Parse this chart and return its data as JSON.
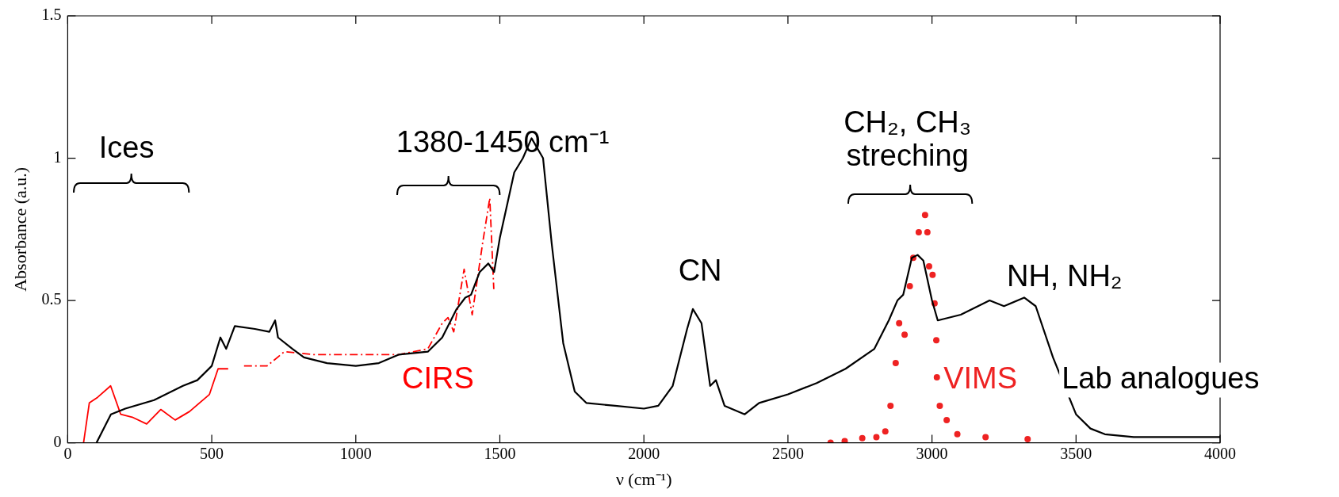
{
  "chart_data": {
    "type": "line",
    "xlabel": "ν (cm⁻¹)",
    "ylabel": "Absorbance (a.u.)",
    "xlim": [
      0,
      4000
    ],
    "xticks": [
      0,
      500,
      1000,
      1500,
      2000,
      2500,
      3000,
      3500,
      4000
    ],
    "ylim": [
      0,
      1.5
    ],
    "yticks": [
      0,
      0.5,
      1,
      1.5
    ],
    "grid": false,
    "legend": false,
    "series": [
      {
        "name": "Lab analogues",
        "color": "#000000",
        "line_style": "solid",
        "marker": "none",
        "x": [
          100,
          150,
          200,
          300,
          400,
          450,
          500,
          530,
          550,
          580,
          650,
          700,
          720,
          730,
          780,
          820,
          900,
          1000,
          1080,
          1150,
          1250,
          1300,
          1350,
          1380,
          1400,
          1430,
          1460,
          1480,
          1500,
          1550,
          1580,
          1610,
          1650,
          1680,
          1720,
          1760,
          1800,
          1900,
          2000,
          2050,
          2100,
          2150,
          2170,
          2200,
          2230,
          2250,
          2280,
          2350,
          2400,
          2500,
          2600,
          2700,
          2800,
          2850,
          2880,
          2900,
          2930,
          2950,
          2970,
          3000,
          3020,
          3100,
          3200,
          3250,
          3320,
          3360,
          3420,
          3500,
          3550,
          3600,
          3700,
          4000
        ],
        "values": [
          0,
          0.1,
          0.12,
          0.15,
          0.2,
          0.22,
          0.27,
          0.37,
          0.33,
          0.41,
          0.4,
          0.39,
          0.43,
          0.37,
          0.33,
          0.3,
          0.28,
          0.27,
          0.28,
          0.31,
          0.32,
          0.37,
          0.47,
          0.51,
          0.52,
          0.6,
          0.63,
          0.6,
          0.72,
          0.95,
          1,
          1.07,
          1,
          0.7,
          0.35,
          0.18,
          0.14,
          0.13,
          0.12,
          0.13,
          0.2,
          0.4,
          0.47,
          0.42,
          0.2,
          0.22,
          0.13,
          0.1,
          0.14,
          0.17,
          0.21,
          0.26,
          0.33,
          0.43,
          0.5,
          0.52,
          0.65,
          0.66,
          0.64,
          0.5,
          0.43,
          0.45,
          0.5,
          0.48,
          0.51,
          0.48,
          0.3,
          0.1,
          0.05,
          0.03,
          0.02,
          0.02
        ]
      },
      {
        "name": "CIRS",
        "color": "#ff0000",
        "line_style": "dashed",
        "marker": "none",
        "x": [
          612,
          692,
          752,
          851,
          950,
          1050,
          1149,
          1250,
          1300,
          1320,
          1340,
          1376,
          1404,
          1440,
          1465,
          1479
        ],
        "values": [
          0.27,
          0.27,
          0.32,
          0.31,
          0.31,
          0.31,
          0.31,
          0.33,
          0.42,
          0.44,
          0.39,
          0.61,
          0.45,
          0.7,
          0.86,
          0.54
        ]
      },
      {
        "color": "#ff0000",
        "line_style": "solid",
        "marker": "none",
        "x": [
          55,
          75,
          104,
          149,
          184,
          224,
          274,
          323,
          373,
          423,
          492,
          522,
          557
        ],
        "values": [
          0,
          0.14,
          0.16,
          0.2,
          0.1,
          0.09,
          0.066,
          0.117,
          0.08,
          0.11,
          0.17,
          0.26,
          0.26
        ]
      },
      {
        "name": "VIMS",
        "type": "scatter",
        "color": "#ee2222",
        "marker": "circle",
        "x": [
          2648,
          2697,
          2758,
          2807,
          2838,
          2856,
          2874,
          2886,
          2905,
          2923,
          2935,
          2954,
          2976,
          2984,
          2990,
          3002,
          3009,
          3015,
          3017,
          3027,
          3051,
          3088,
          3186,
          3332
        ],
        "values": [
          0,
          0.006,
          0.016,
          0.02,
          0.04,
          0.13,
          0.28,
          0.42,
          0.38,
          0.55,
          0.65,
          0.74,
          0.8,
          0.74,
          0.62,
          0.59,
          0.49,
          0.36,
          0.23,
          0.13,
          0.08,
          0.03,
          0.02,
          0.013
        ]
      }
    ],
    "annotations": [
      "Ices",
      "1380-1450 cm⁻¹",
      "CH₂, CH₃\nstreching",
      "CN",
      "NH, NH₂"
    ]
  }
}
